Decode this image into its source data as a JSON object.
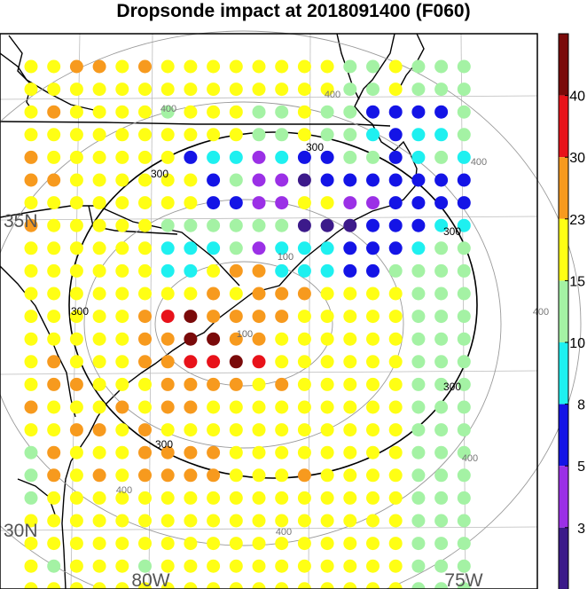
{
  "chart_data": {
    "type": "scatter",
    "title": "Dropsonde impact at 2018091400 (F060)",
    "lat_labels": [
      "35N",
      "30N"
    ],
    "lon_labels": [
      "80W",
      "75W"
    ],
    "colorbar": {
      "tick_labels": [
        "40",
        "30",
        "23",
        "15",
        "10",
        "8",
        "5",
        "3"
      ],
      "colors": [
        "#7a0a0a",
        "#e8121a",
        "#f79a1e",
        "#ffff14",
        "#a4f2a4",
        "#1ef0f0",
        "#1414e6",
        "#9b30e6",
        "#3c1a8a"
      ]
    },
    "contours": {
      "inner_levels": [
        "100",
        "100"
      ],
      "mid_levels": [
        "300",
        "300",
        "300",
        "300",
        "300",
        "300"
      ],
      "outer_levels": [
        "400",
        "400",
        "400",
        "400",
        "400",
        "400",
        "400"
      ]
    },
    "grid_dots": [
      "yyooyoyyyyyyyyggyggg",
      "yyyyyyyyyyyyyyggyggg",
      "yoyyyygyyyggyggbbbbg",
      "yyyyyyyyyyggyggcbccg",
      "oyyyyyybccpcbbggbcgc",
      "ooyyyyyybgppPbbbbbbb",
      "yyyyyyyybbppyyppbbbb",
      "oyyyyyggggggPPPbbbcc",
      "yyyyyycccgpcccbbbcgg",
      "yyyyyyccyoocccbbgggg",
      "yyyyyyyyoyoooyyyyggg",
      "yyyyyorMooooyyyyyggg",
      "yyyyyooDDooyyyyyyggg",
      "yoyyyoorrDryyyyyyggg",
      "yooyyyooooyoyyyyyggg",
      "oyyyoyooyyyyyyyyyggg",
      "yyooyoyyyyyyyyyyyggg",
      "goyyyooooyyyyyyyyggg",
      "goyoyooooyyyoyyyyggg",
      "gyyyyyyyyyyyyyyyyggg",
      "yyyyyyyyyyyyyyyyyggg",
      "yyyyyyyyyyyyyyyyyggg",
      "ygyyygyyyyyyyyyyyggg",
      "yyyyyyyyyyyyyyyyyggg"
    ],
    "dot_colors": {
      "D": "#7a0a0a",
      "M": "#7a0a0a",
      "r": "#e8121a",
      "o": "#f79a1e",
      "y": "#ffff14",
      "g": "#a4f2a4",
      "c": "#1ef0f0",
      "b": "#1414e6",
      "p": "#9b30e6",
      "P": "#3c1a8a"
    }
  }
}
